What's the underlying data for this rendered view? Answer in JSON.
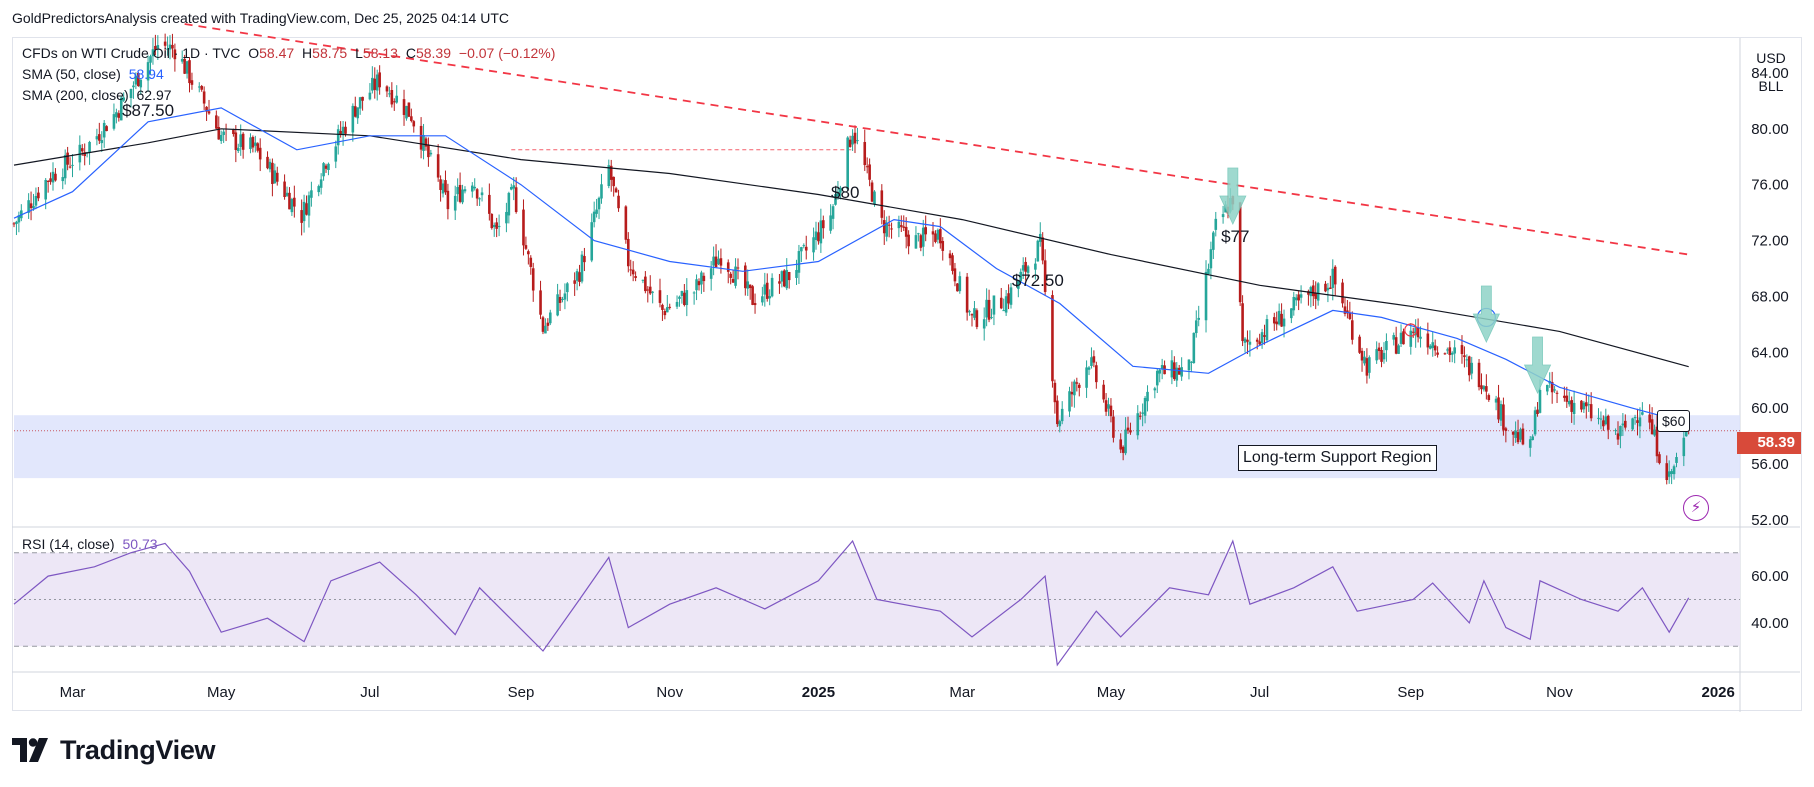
{
  "header": {
    "credit": "GoldPredictorsAnalysis created with TradingView.com, Dec 25, 2025 04:14 UTC"
  },
  "legend": {
    "symbol": "CFDs on WTI Crude Oil · 1D · TVC",
    "open_key": "O",
    "open": "58.47",
    "high_key": "H",
    "high": "58.75",
    "low_key": "L",
    "low": "58.13",
    "close_key": "C",
    "close": "58.39",
    "change": "−0.07 (−0.12%)",
    "sma50_label": "SMA (50, close)",
    "sma50_value": "58.94",
    "sma200_label": "SMA (200, close)",
    "sma200_value": "62.97",
    "rsi_label": "RSI (14, close)",
    "rsi_value": "50.73"
  },
  "currency": {
    "currency": "USD",
    "unit": "BLL"
  },
  "last_price_tag": "58.39",
  "annotations": {
    "peak_1": "$87.50",
    "peak_2": "$80",
    "peak_3": "$72.50",
    "peak_4": "$77",
    "resistance_60": "$60",
    "support_label": "Long-term Support Region"
  },
  "branding": {
    "wordmark": "TradingView"
  },
  "colors": {
    "up": "#26a69a",
    "down": "#b71c1c",
    "sma50": "#2962ff",
    "sma200": "#131722",
    "trendline": "#f23645",
    "support_zone": "#dde3fb",
    "rsi": "#7e57c2",
    "rsi_band": "#ede7f6",
    "arrow": "#8fd3c7",
    "last_price": "#d84a3a"
  },
  "chart_data": [
    {
      "type": "candlestick",
      "title": "CFDs on WTI Crude Oil · 1D · TVC",
      "price_axis_ticks": [
        84.0,
        80.0,
        76.0,
        72.0,
        68.0,
        64.0,
        60.0,
        56.0,
        52.0
      ],
      "ylim": [
        51.5,
        86.5
      ],
      "time_axis_labels": [
        "Mar",
        "May",
        "Jul",
        "Sep",
        "Nov",
        "2025",
        "Mar",
        "May",
        "Jul",
        "Sep",
        "Nov",
        "2026"
      ],
      "xlim": [
        "2024-02-06",
        "2026-01-12"
      ],
      "close_path": [
        [
          "2024-02-06",
          73.2
        ],
        [
          "2024-02-20",
          76.5
        ],
        [
          "2024-03-05",
          78.3
        ],
        [
          "2024-03-19",
          81.2
        ],
        [
          "2024-04-05",
          86.0
        ],
        [
          "2024-04-12",
          85.7
        ],
        [
          "2024-04-22",
          82.5
        ],
        [
          "2024-05-01",
          79.5
        ],
        [
          "2024-05-15",
          78.5
        ],
        [
          "2024-06-03",
          73.8
        ],
        [
          "2024-06-12",
          77.5
        ],
        [
          "2024-06-25",
          81.5
        ],
        [
          "2024-07-05",
          83.5
        ],
        [
          "2024-07-18",
          81.0
        ],
        [
          "2024-08-02",
          74.5
        ],
        [
          "2024-08-12",
          76.5
        ],
        [
          "2024-08-22",
          72.5
        ],
        [
          "2024-08-29",
          75.5
        ],
        [
          "2024-09-10",
          65.8
        ],
        [
          "2024-09-25",
          69.8
        ],
        [
          "2024-10-07",
          77.2
        ],
        [
          "2024-10-15",
          70.5
        ],
        [
          "2024-10-29",
          67.0
        ],
        [
          "2024-11-11",
          68.4
        ],
        [
          "2024-11-22",
          71.0
        ],
        [
          "2024-12-05",
          67.8
        ],
        [
          "2024-12-20",
          69.5
        ],
        [
          "2025-01-06",
          73.8
        ],
        [
          "2025-01-15",
          80.0
        ],
        [
          "2025-01-27",
          73.2
        ],
        [
          "2025-02-10",
          72.0
        ],
        [
          "2025-02-20",
          72.5
        ],
        [
          "2025-03-05",
          66.3
        ],
        [
          "2025-03-20",
          68.0
        ],
        [
          "2025-04-02",
          71.7
        ],
        [
          "2025-04-09",
          59.0
        ],
        [
          "2025-04-22",
          63.5
        ],
        [
          "2025-05-05",
          57.0
        ],
        [
          "2025-05-20",
          62.5
        ],
        [
          "2025-06-02",
          62.8
        ],
        [
          "2025-06-13",
          72.9
        ],
        [
          "2025-06-20",
          75.1
        ],
        [
          "2025-06-24",
          64.4
        ],
        [
          "2025-07-10",
          66.5
        ],
        [
          "2025-07-31",
          69.3
        ],
        [
          "2025-08-14",
          63.0
        ],
        [
          "2025-09-02",
          65.6
        ],
        [
          "2025-09-18",
          64.0
        ],
        [
          "2025-10-01",
          62.0
        ],
        [
          "2025-10-10",
          58.9
        ],
        [
          "2025-10-20",
          57.0
        ],
        [
          "2025-10-24",
          61.5
        ],
        [
          "2025-11-10",
          60.1
        ],
        [
          "2025-11-25",
          58.0
        ],
        [
          "2025-12-05",
          60.1
        ],
        [
          "2025-12-16",
          55.0
        ],
        [
          "2025-12-24",
          58.39
        ]
      ],
      "sma50": [
        [
          "2024-02-06",
          73.6
        ],
        [
          "2024-03-01",
          75.5
        ],
        [
          "2024-04-01",
          80.5
        ],
        [
          "2024-05-01",
          81.5
        ],
        [
          "2024-06-01",
          78.5
        ],
        [
          "2024-07-01",
          79.5
        ],
        [
          "2024-08-01",
          79.5
        ],
        [
          "2024-09-01",
          76.0
        ],
        [
          "2024-10-01",
          72.0
        ],
        [
          "2024-11-01",
          70.5
        ],
        [
          "2024-12-01",
          69.8
        ],
        [
          "2025-01-01",
          70.5
        ],
        [
          "2025-02-01",
          73.5
        ],
        [
          "2025-02-20",
          73.0
        ],
        [
          "2025-03-15",
          70.0
        ],
        [
          "2025-04-10",
          67.5
        ],
        [
          "2025-05-10",
          63.0
        ],
        [
          "2025-06-10",
          62.5
        ],
        [
          "2025-07-01",
          64.5
        ],
        [
          "2025-07-31",
          67.0
        ],
        [
          "2025-08-20",
          66.5
        ],
        [
          "2025-09-20",
          65.0
        ],
        [
          "2025-10-10",
          63.5
        ],
        [
          "2025-11-01",
          61.5
        ],
        [
          "2025-12-01",
          60.0
        ],
        [
          "2025-12-24",
          58.94
        ]
      ],
      "sma200": [
        [
          "2024-02-06",
          77.4
        ],
        [
          "2024-04-01",
          79.0
        ],
        [
          "2024-05-01",
          80.0
        ],
        [
          "2024-07-01",
          79.5
        ],
        [
          "2024-09-01",
          77.8
        ],
        [
          "2024-11-01",
          76.8
        ],
        [
          "2025-01-01",
          75.3
        ],
        [
          "2025-03-01",
          73.5
        ],
        [
          "2025-05-01",
          71.0
        ],
        [
          "2025-07-01",
          68.8
        ],
        [
          "2025-09-01",
          67.3
        ],
        [
          "2025-11-01",
          65.5
        ],
        [
          "2025-12-24",
          62.97
        ]
      ],
      "trendline_dashed": [
        [
          "2024-04-16",
          87.5
        ],
        [
          "2025-12-24",
          71.0
        ]
      ],
      "horizontal_levels": [
        {
          "from": "2024-08-28",
          "to": "2025-01-15",
          "price": 78.5
        },
        {
          "from": "2024-02-06",
          "to": "2025-12-24",
          "price": 58.39
        }
      ],
      "support_zone": [
        55.0,
        59.5
      ],
      "down_arrows": [
        "2025-06-20",
        "2025-10-02",
        "2025-10-23"
      ],
      "circles": [
        [
          "2025-09-01",
          65.6
        ],
        [
          "2025-10-02",
          66.5
        ]
      ]
    },
    {
      "type": "line",
      "title": "RSI (14, close)",
      "ticks": [
        60.0,
        40.0
      ],
      "ylim": [
        19,
        81
      ],
      "bands": {
        "upper": 70,
        "middle": 50,
        "lower": 30
      },
      "rsi_path": [
        [
          "2024-02-06",
          48
        ],
        [
          "2024-02-20",
          60
        ],
        [
          "2024-03-10",
          64
        ],
        [
          "2024-03-25",
          70
        ],
        [
          "2024-04-08",
          74
        ],
        [
          "2024-04-18",
          62
        ],
        [
          "2024-05-01",
          36
        ],
        [
          "2024-05-20",
          42
        ],
        [
          "2024-06-04",
          32
        ],
        [
          "2024-06-15",
          58
        ],
        [
          "2024-07-05",
          66
        ],
        [
          "2024-07-20",
          52
        ],
        [
          "2024-08-05",
          35
        ],
        [
          "2024-08-15",
          55
        ],
        [
          "2024-09-10",
          28
        ],
        [
          "2024-09-25",
          50
        ],
        [
          "2024-10-07",
          68
        ],
        [
          "2024-10-15",
          38
        ],
        [
          "2024-11-01",
          48
        ],
        [
          "2024-11-20",
          55
        ],
        [
          "2024-12-10",
          46
        ],
        [
          "2025-01-01",
          58
        ],
        [
          "2025-01-15",
          75
        ],
        [
          "2025-01-25",
          50
        ],
        [
          "2025-02-20",
          45
        ],
        [
          "2025-03-05",
          34
        ],
        [
          "2025-03-25",
          50
        ],
        [
          "2025-04-04",
          60
        ],
        [
          "2025-04-09",
          22
        ],
        [
          "2025-04-25",
          45
        ],
        [
          "2025-05-05",
          34
        ],
        [
          "2025-05-25",
          55
        ],
        [
          "2025-06-10",
          52
        ],
        [
          "2025-06-20",
          75
        ],
        [
          "2025-06-27",
          48
        ],
        [
          "2025-07-15",
          55
        ],
        [
          "2025-07-31",
          64
        ],
        [
          "2025-08-10",
          45
        ],
        [
          "2025-09-02",
          50
        ],
        [
          "2025-09-10",
          57
        ],
        [
          "2025-09-25",
          40
        ],
        [
          "2025-10-01",
          58
        ],
        [
          "2025-10-10",
          38
        ],
        [
          "2025-10-20",
          33
        ],
        [
          "2025-10-24",
          58
        ],
        [
          "2025-11-10",
          50
        ],
        [
          "2025-11-25",
          45
        ],
        [
          "2025-12-05",
          55
        ],
        [
          "2025-12-16",
          36
        ],
        [
          "2025-12-24",
          50.73
        ]
      ]
    }
  ]
}
